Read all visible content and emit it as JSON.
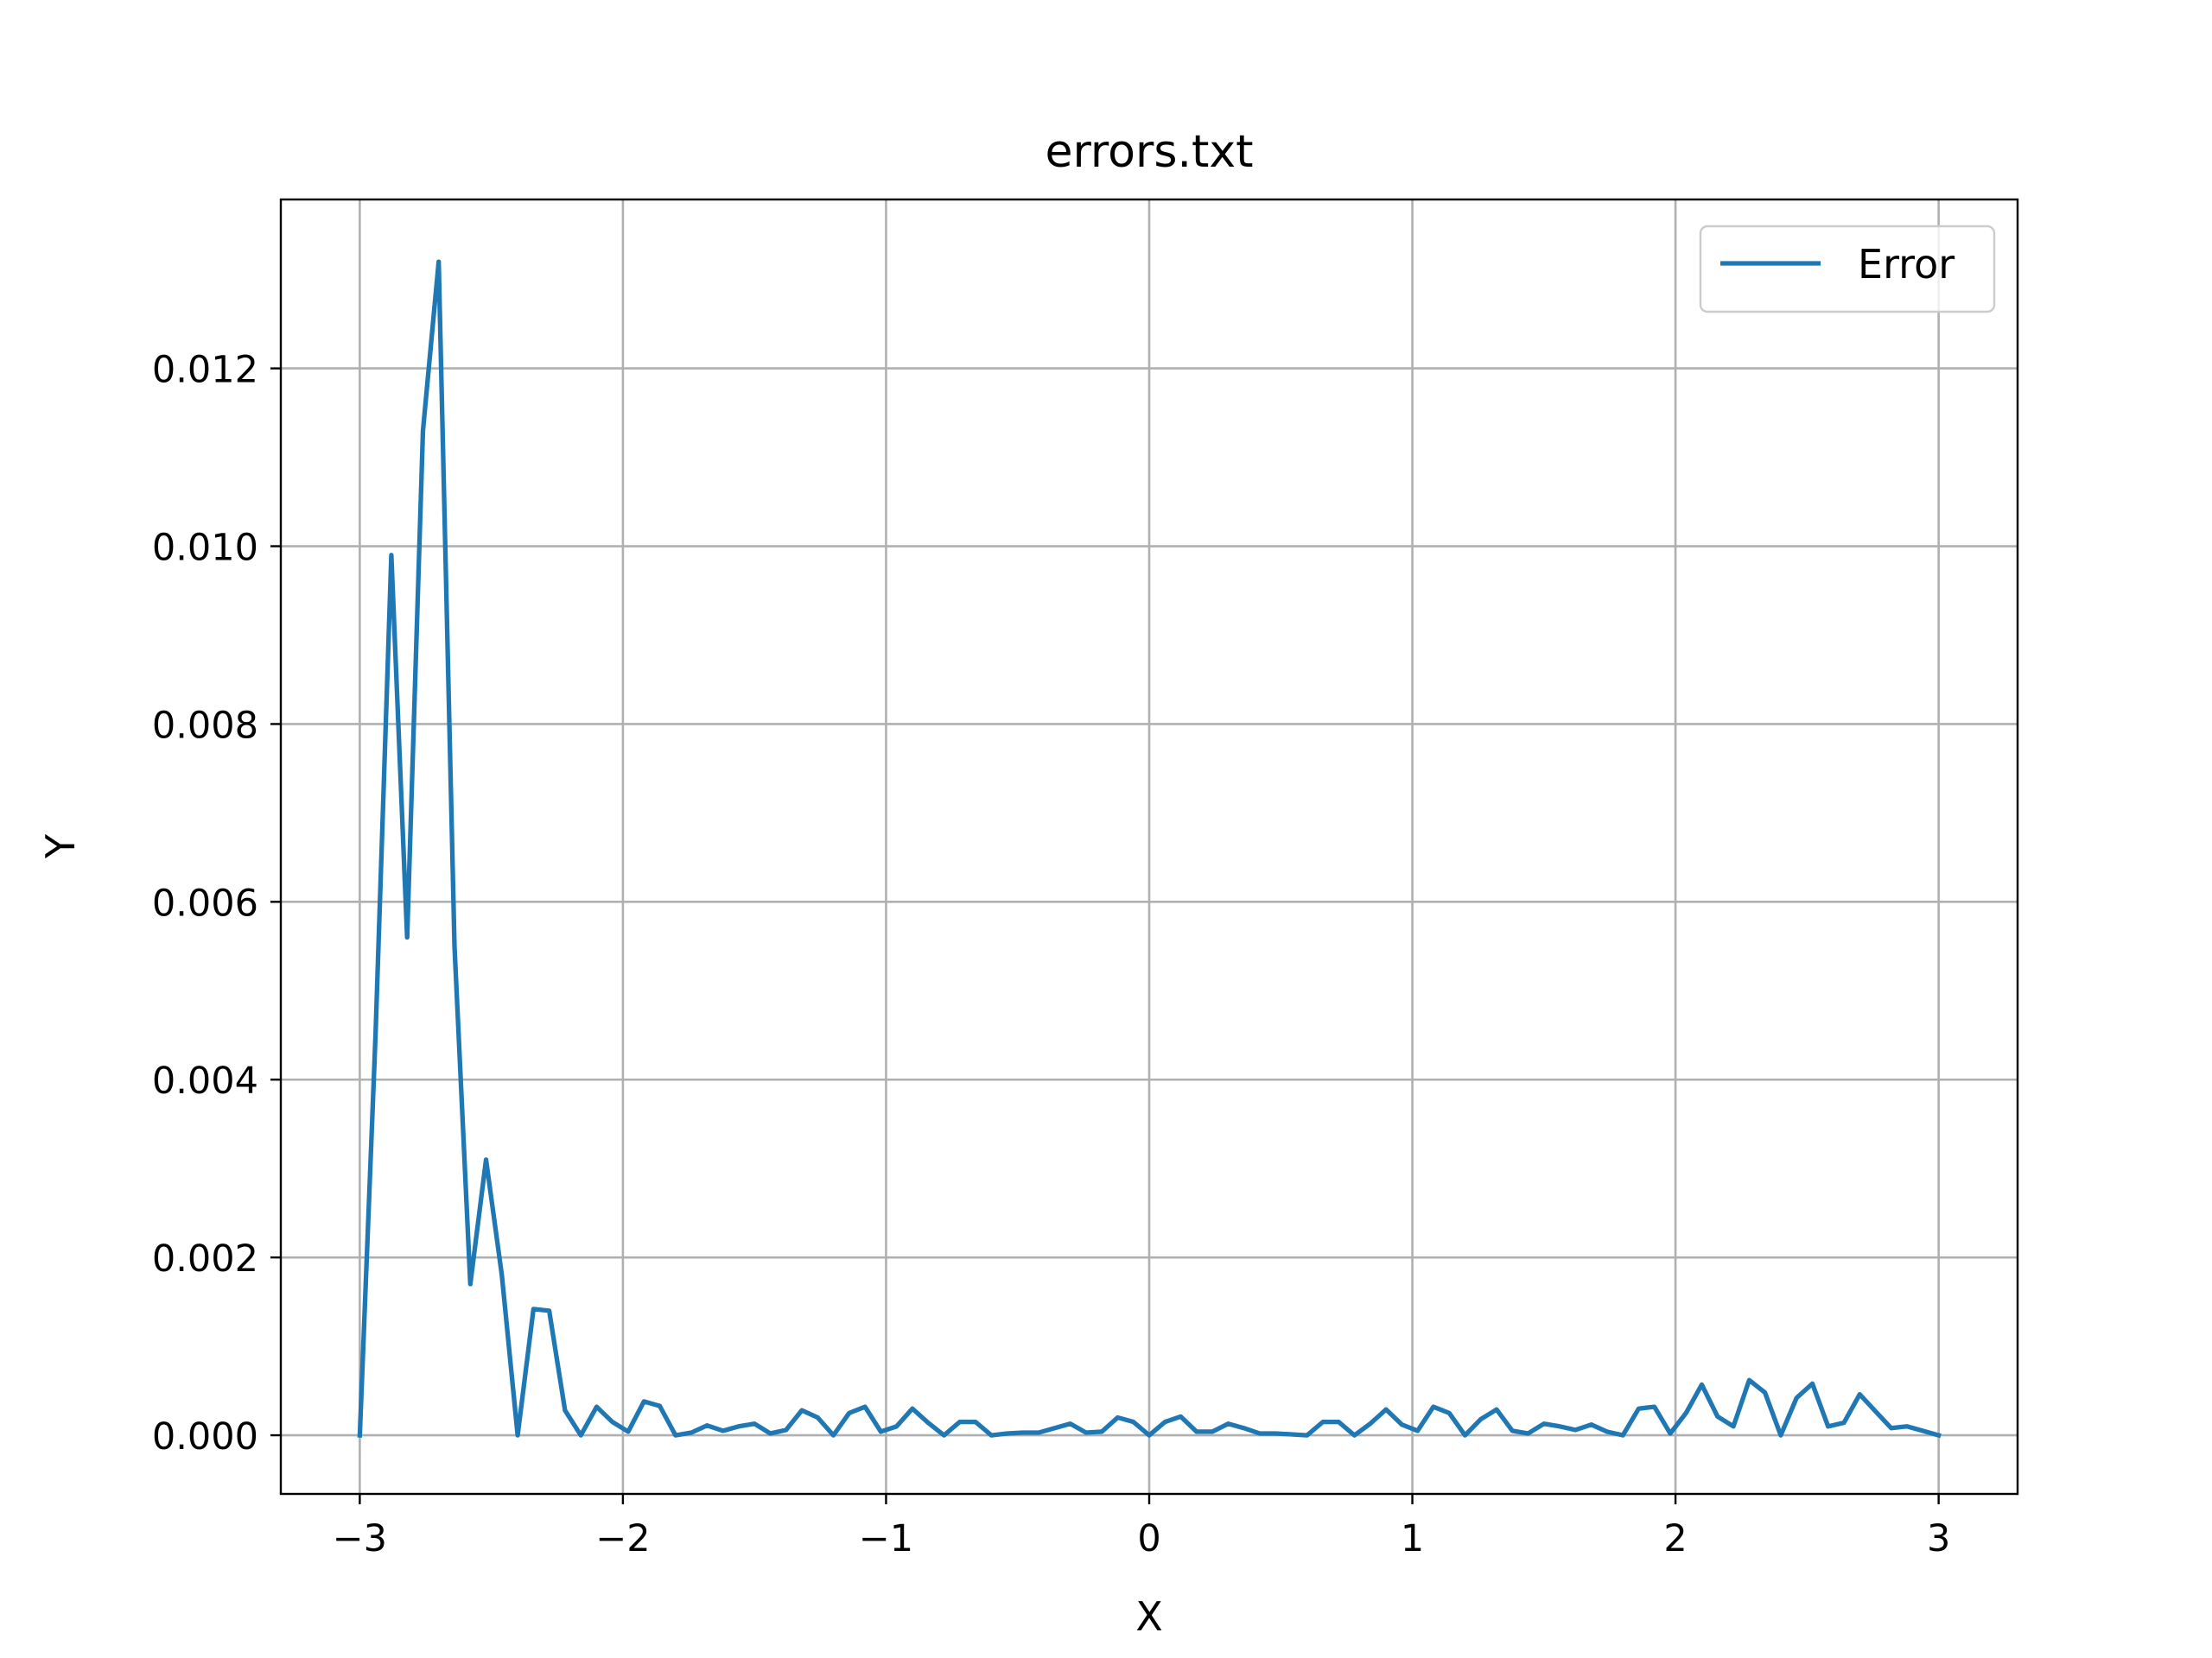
{
  "chart_data": {
    "type": "line",
    "title": "errors.txt",
    "xlabel": "X",
    "ylabel": "Y",
    "xlim": [
      -3.3,
      3.3
    ],
    "ylim": [
      -0.00066,
      0.0139
    ],
    "xticks": [
      -3,
      -2,
      -1,
      0,
      1,
      2,
      3
    ],
    "xtick_labels": [
      "−3",
      "−2",
      "−1",
      "0",
      "1",
      "2",
      "3"
    ],
    "yticks": [
      0.0,
      0.002,
      0.004,
      0.006,
      0.008,
      0.01,
      0.012
    ],
    "ytick_labels": [
      "0.000",
      "0.002",
      "0.004",
      "0.006",
      "0.008",
      "0.010",
      "0.012"
    ],
    "grid": true,
    "legend_position": "top-right",
    "series": [
      {
        "name": "Error",
        "color": "#1f77b4",
        "x": [
          -3.0,
          -2.94,
          -2.88,
          -2.82,
          -2.76,
          -2.7,
          -2.64,
          -2.58,
          -2.52,
          -2.46,
          -2.4,
          -2.34,
          -2.28,
          -2.22,
          -2.16,
          -2.1,
          -2.04,
          -1.98,
          -1.92,
          -1.86,
          -1.8,
          -1.74,
          -1.68,
          -1.62,
          -1.56,
          -1.5,
          -1.44,
          -1.38,
          -1.32,
          -1.26,
          -1.2,
          -1.14,
          -1.08,
          -1.02,
          -0.96,
          -0.9,
          -0.84,
          -0.78,
          -0.72,
          -0.66,
          -0.6,
          -0.54,
          -0.48,
          -0.42,
          -0.36,
          -0.3,
          -0.24,
          -0.18,
          -0.12,
          -0.06,
          0.0,
          0.06,
          0.12,
          0.18,
          0.24,
          0.3,
          0.36,
          0.42,
          0.48,
          0.54,
          0.6,
          0.66,
          0.72,
          0.78,
          0.84,
          0.9,
          0.96,
          1.02,
          1.08,
          1.14,
          1.2,
          1.26,
          1.32,
          1.38,
          1.44,
          1.5,
          1.56,
          1.62,
          1.68,
          1.74,
          1.8,
          1.86,
          1.92,
          1.98,
          2.04,
          2.1,
          2.16,
          2.22,
          2.28,
          2.34,
          2.4,
          2.46,
          2.52,
          2.58,
          2.64,
          2.7,
          2.76,
          2.82,
          2.88,
          2.94,
          3.0
        ],
        "y": [
          0.0,
          0.0045,
          0.0099,
          0.0056,
          0.0113,
          0.0132,
          0.0055,
          0.0017,
          0.0031,
          0.0018,
          0.0,
          0.00142,
          0.0014,
          0.00028,
          0.0,
          0.00032,
          0.00015,
          4e-05,
          0.00038,
          0.00033,
          0.0,
          3e-05,
          0.00011,
          5e-05,
          0.0001,
          0.00013,
          2e-05,
          6e-05,
          0.00028,
          0.0002,
          0.0,
          0.00025,
          0.00032,
          4e-05,
          0.0001,
          0.0003,
          0.00014,
          0.0,
          0.00015,
          0.00015,
          0.0,
          2e-05,
          3e-05,
          3e-05,
          8e-05,
          0.00013,
          3e-05,
          4e-05,
          0.0002,
          0.00015,
          0.0,
          0.00015,
          0.00021,
          4e-05,
          4e-05,
          0.00013,
          8e-05,
          2e-05,
          2e-05,
          1e-05,
          0.0,
          0.00015,
          0.00015,
          0.0,
          0.00013,
          0.00029,
          0.00012,
          5e-05,
          0.00032,
          0.00025,
          0.0,
          0.00018,
          0.00029,
          5e-05,
          2e-05,
          0.00013,
          0.0001,
          6e-05,
          0.00012,
          4e-05,
          0.0,
          0.0003,
          0.00032,
          2e-05,
          0.00025,
          0.00057,
          0.00021,
          0.0001,
          0.00062,
          0.00048,
          0.0,
          0.00042,
          0.00058,
          0.0001,
          0.00014,
          0.00046,
          0.00027,
          8e-05,
          0.0001,
          5e-05,
          0.0
        ]
      }
    ]
  }
}
